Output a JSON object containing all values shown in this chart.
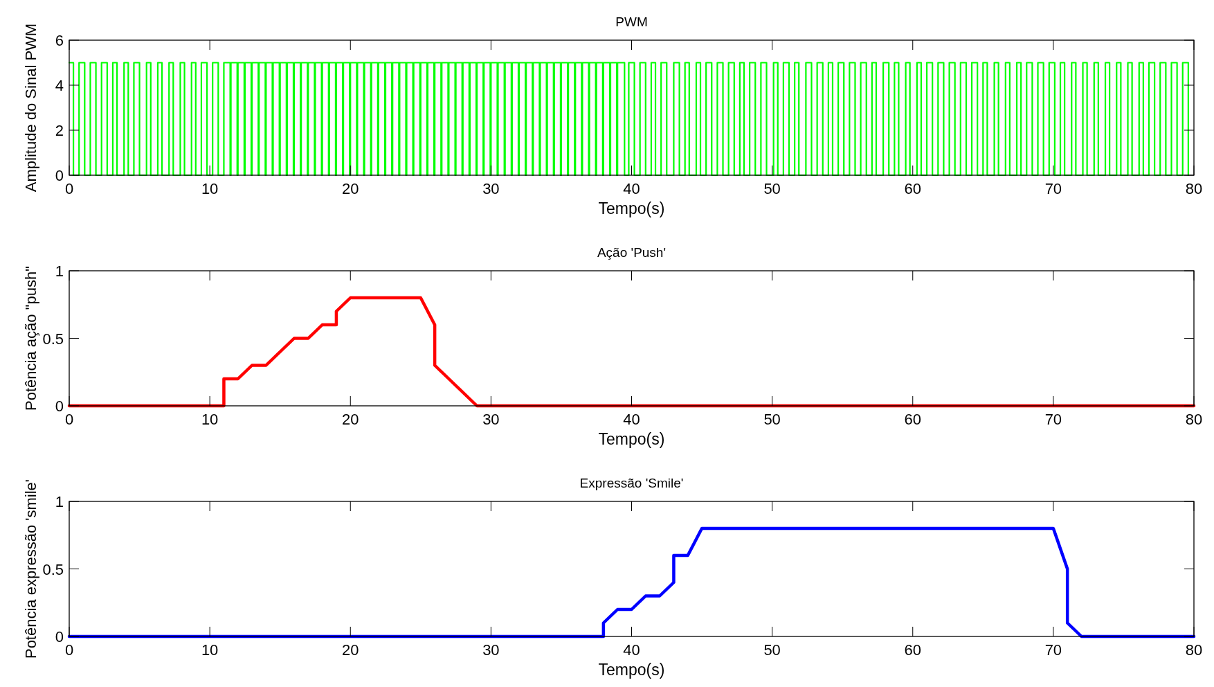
{
  "chart_data": [
    {
      "type": "step",
      "title": "PWM",
      "xlabel": "Tempo(s)",
      "ylabel": "Amplitude do Sinal PWM",
      "xlim": [
        0,
        80
      ],
      "xticks": [
        0,
        10,
        20,
        30,
        40,
        50,
        60,
        70,
        80
      ],
      "ylim": [
        0,
        6
      ],
      "yticks": [
        0,
        2,
        4,
        6
      ],
      "series": [
        {
          "color": "#00ff00",
          "x": [
            0,
            0.3,
            0.7,
            1.1,
            1.5,
            1.9,
            2.3,
            2.7,
            3.1,
            3.4,
            3.9,
            4.2,
            4.6,
            5.0,
            5.5,
            5.8,
            6.3,
            6.6,
            7.1,
            7.4,
            7.9,
            8.2,
            8.7,
            9.0,
            9.4,
            9.8,
            10.2,
            10.6,
            11,
            11.45,
            11.5,
            11.95,
            12,
            12.45,
            12.5,
            12.95,
            13,
            13.45,
            13.5,
            13.95,
            14,
            14.45,
            14.5,
            14.95,
            15,
            15.45,
            15.5,
            15.95,
            16,
            16.45,
            16.5,
            16.95,
            17,
            17.45,
            17.5,
            17.95,
            18,
            18.45,
            18.5,
            18.95,
            19,
            19.45,
            19.5,
            19.95,
            20,
            20.45,
            20.5,
            20.95,
            21,
            21.45,
            21.5,
            21.95,
            22,
            22.45,
            22.5,
            22.95,
            23,
            23.45,
            23.5,
            23.95,
            24,
            24.45,
            24.5,
            24.95,
            25,
            25.45,
            25.5,
            25.95,
            26,
            26.45,
            26.5,
            26.95,
            27,
            27.45,
            27.5,
            27.95,
            28,
            28.45,
            28.5,
            28.95,
            29,
            29.45,
            29.5,
            29.95,
            30,
            30.45,
            30.5,
            30.95,
            31,
            31.45,
            31.5,
            31.95,
            32,
            32.45,
            32.5,
            32.95,
            33,
            33.45,
            33.5,
            33.95,
            34,
            34.45,
            34.5,
            34.95,
            35,
            35.45,
            35.5,
            35.95,
            36,
            36.45,
            36.5,
            36.95,
            37,
            37.45,
            37.5,
            37.95,
            38,
            38.45,
            38.5,
            38.95,
            39,
            39.5,
            39.8,
            40.2,
            40.6,
            41.0,
            41.4,
            41.7,
            42.1,
            42.5,
            43.0,
            43.4,
            43.8,
            44.1,
            44.6,
            44.9,
            45.3,
            45.7,
            46.1,
            46.5,
            46.9,
            47.3,
            47.7,
            48.0,
            48.4,
            48.8,
            49.2,
            49.6,
            50.1,
            50.4,
            50.8,
            51.2,
            51.6,
            51.9,
            52.4,
            52.8,
            53.2,
            53.6,
            54.0,
            54.3,
            54.7,
            55.1,
            55.5,
            55.9,
            56.3,
            56.7,
            57.1,
            57.4,
            57.9,
            58.3,
            58.7,
            59.0,
            59.5,
            59.8,
            60.3,
            60.6,
            61.0,
            61.4,
            61.8,
            62.2,
            62.6,
            63.0,
            63.4,
            63.8,
            64.2,
            64.6,
            65.0,
            65.3,
            65.8,
            66.1,
            66.6,
            66.9,
            67.4,
            67.7,
            68.1,
            68.5,
            68.9,
            69.3,
            69.7,
            70.1,
            70.5,
            70.8,
            71.3,
            71.6,
            72.1,
            72.4,
            72.9,
            73.2,
            73.7,
            74.0,
            74.5,
            74.8,
            75.3,
            75.6,
            76.1,
            76.4,
            76.8,
            77.2,
            77.6,
            78.0,
            78.4,
            78.8,
            79.2,
            79.6
          ],
          "values": [
            5,
            0,
            5,
            0,
            5,
            0,
            5,
            0,
            5,
            0,
            5,
            0,
            5,
            0,
            5,
            0,
            5,
            0,
            5,
            0,
            5,
            0,
            5,
            0,
            5,
            0,
            5,
            0,
            5,
            0,
            5,
            0,
            5,
            0,
            5,
            0,
            5,
            0,
            5,
            0,
            5,
            0,
            5,
            0,
            5,
            0,
            5,
            0,
            5,
            0,
            5,
            0,
            5,
            0,
            5,
            0,
            5,
            0,
            5,
            0,
            5,
            0,
            5,
            0,
            5,
            0,
            5,
            0,
            5,
            0,
            5,
            0,
            5,
            0,
            5,
            0,
            5,
            0,
            5,
            0,
            5,
            0,
            5,
            0,
            5,
            0,
            5,
            0,
            5,
            0,
            5,
            0,
            5,
            0,
            5,
            0,
            5,
            0,
            5,
            0,
            5,
            0,
            5,
            0,
            5,
            0,
            5,
            0,
            5,
            0,
            5,
            0,
            5,
            0,
            5,
            0,
            5,
            0,
            5,
            0,
            5,
            0,
            5,
            0,
            5,
            0,
            5,
            0,
            5,
            0,
            5,
            0,
            5,
            0,
            5,
            0,
            5,
            0,
            5,
            0,
            5,
            0,
            5,
            0,
            5,
            0,
            5,
            0,
            5,
            0,
            5,
            0,
            5,
            0,
            5,
            0,
            5,
            0,
            5,
            0,
            5,
            0,
            5,
            0,
            5,
            0,
            5,
            0,
            5,
            0,
            5,
            0,
            5,
            0,
            5,
            0,
            5,
            0,
            5,
            0,
            5,
            0,
            5,
            0,
            5,
            0,
            5,
            0,
            5,
            0,
            5,
            0,
            5,
            0,
            5,
            0,
            5,
            0,
            5,
            0,
            5,
            0,
            5,
            0,
            5,
            0,
            5,
            0,
            5,
            0,
            5,
            0,
            5,
            0,
            5,
            0,
            5,
            0,
            5,
            0,
            5,
            0,
            5,
            0,
            5,
            0,
            5,
            0,
            5,
            0,
            5,
            0,
            5,
            0,
            5,
            0,
            5,
            0,
            5,
            0,
            5,
            0,
            5,
            0
          ]
        }
      ]
    },
    {
      "type": "line",
      "title": "Ação 'Push'",
      "xlabel": "Tempo(s)",
      "ylabel": "Potência ação \"push\"",
      "xlim": [
        0,
        80
      ],
      "xticks": [
        0,
        10,
        20,
        30,
        40,
        50,
        60,
        70,
        80
      ],
      "ylim": [
        0,
        1
      ],
      "yticks": [
        0,
        0.5,
        1
      ],
      "series": [
        {
          "color": "#ff0000",
          "x": [
            0,
            11,
            11,
            12,
            13,
            14,
            15,
            16,
            17,
            18,
            19,
            19,
            20,
            25,
            26,
            26,
            29,
            80
          ],
          "values": [
            0,
            0,
            0.2,
            0.2,
            0.3,
            0.3,
            0.4,
            0.5,
            0.5,
            0.6,
            0.6,
            0.7,
            0.8,
            0.8,
            0.6,
            0.3,
            0,
            0
          ]
        }
      ]
    },
    {
      "type": "line",
      "title": "Expressão 'Smile'",
      "xlabel": "Tempo(s)",
      "ylabel": "Potência expressão 'smile'",
      "xlim": [
        0,
        80
      ],
      "xticks": [
        0,
        10,
        20,
        30,
        40,
        50,
        60,
        70,
        80
      ],
      "ylim": [
        0,
        1
      ],
      "yticks": [
        0,
        0.5,
        1
      ],
      "series": [
        {
          "color": "#0000ff",
          "x": [
            0,
            38,
            38,
            39,
            40,
            41,
            42,
            43,
            43,
            44,
            45,
            70,
            71,
            71,
            72,
            80
          ],
          "values": [
            0,
            0,
            0.1,
            0.2,
            0.2,
            0.3,
            0.3,
            0.4,
            0.6,
            0.6,
            0.8,
            0.8,
            0.5,
            0.1,
            0,
            0
          ]
        }
      ]
    }
  ]
}
